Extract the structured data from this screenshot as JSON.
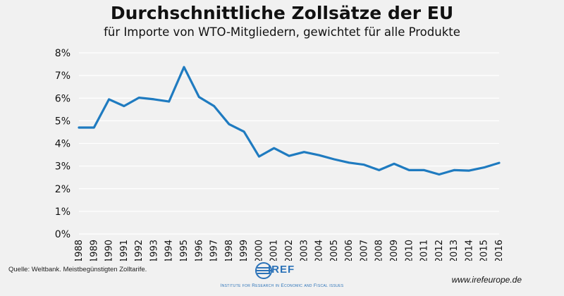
{
  "header": {
    "title": "Durchschnittliche Zollsätze der EU",
    "subtitle": "für Importe von WTO-Mitgliedern, gewichtet für alle Produkte"
  },
  "footer": {
    "source": "Quelle: Weltbank. Meistbegünstigten Zolltarife.",
    "website": "www.irefeurope.de",
    "logo_text": "IREF",
    "logo_tagline": "Institute for Research in Economic and Fiscal issues"
  },
  "colors": {
    "line": "#1f7bc0",
    "grid": "#ffffff",
    "background": "#f1f1f1",
    "logo": "#2b72b8"
  },
  "chart_data": {
    "type": "line",
    "title": "Durchschnittliche Zollsätze der EU",
    "subtitle": "für Importe von WTO-Mitgliedern, gewichtet für alle Produkte",
    "xlabel": "",
    "ylabel": "",
    "categories": [
      "1988",
      "1989",
      "1990",
      "1991",
      "1992",
      "1993",
      "1994",
      "1995",
      "1996",
      "1997",
      "1998",
      "1999",
      "2000",
      "2001",
      "2002",
      "2003",
      "2004",
      "2005",
      "2006",
      "2007",
      "2008",
      "2009",
      "2010",
      "2011",
      "2012",
      "2013",
      "2014",
      "2015",
      "2016"
    ],
    "series": [
      {
        "values": [
          4.7,
          4.7,
          5.95,
          5.65,
          6.02,
          5.95,
          5.85,
          7.37,
          6.05,
          5.65,
          4.85,
          4.52,
          3.42,
          3.79,
          3.45,
          3.62,
          3.48,
          3.3,
          3.15,
          3.06,
          2.82,
          3.1,
          2.82,
          2.82,
          2.63,
          2.82,
          2.8,
          2.94,
          3.14
        ]
      }
    ],
    "ylim": [
      0,
      8
    ],
    "yticks": [
      "0%",
      "1%",
      "2%",
      "3%",
      "4%",
      "5%",
      "6%",
      "7%",
      "8%"
    ],
    "grid": true,
    "legend": "none"
  }
}
